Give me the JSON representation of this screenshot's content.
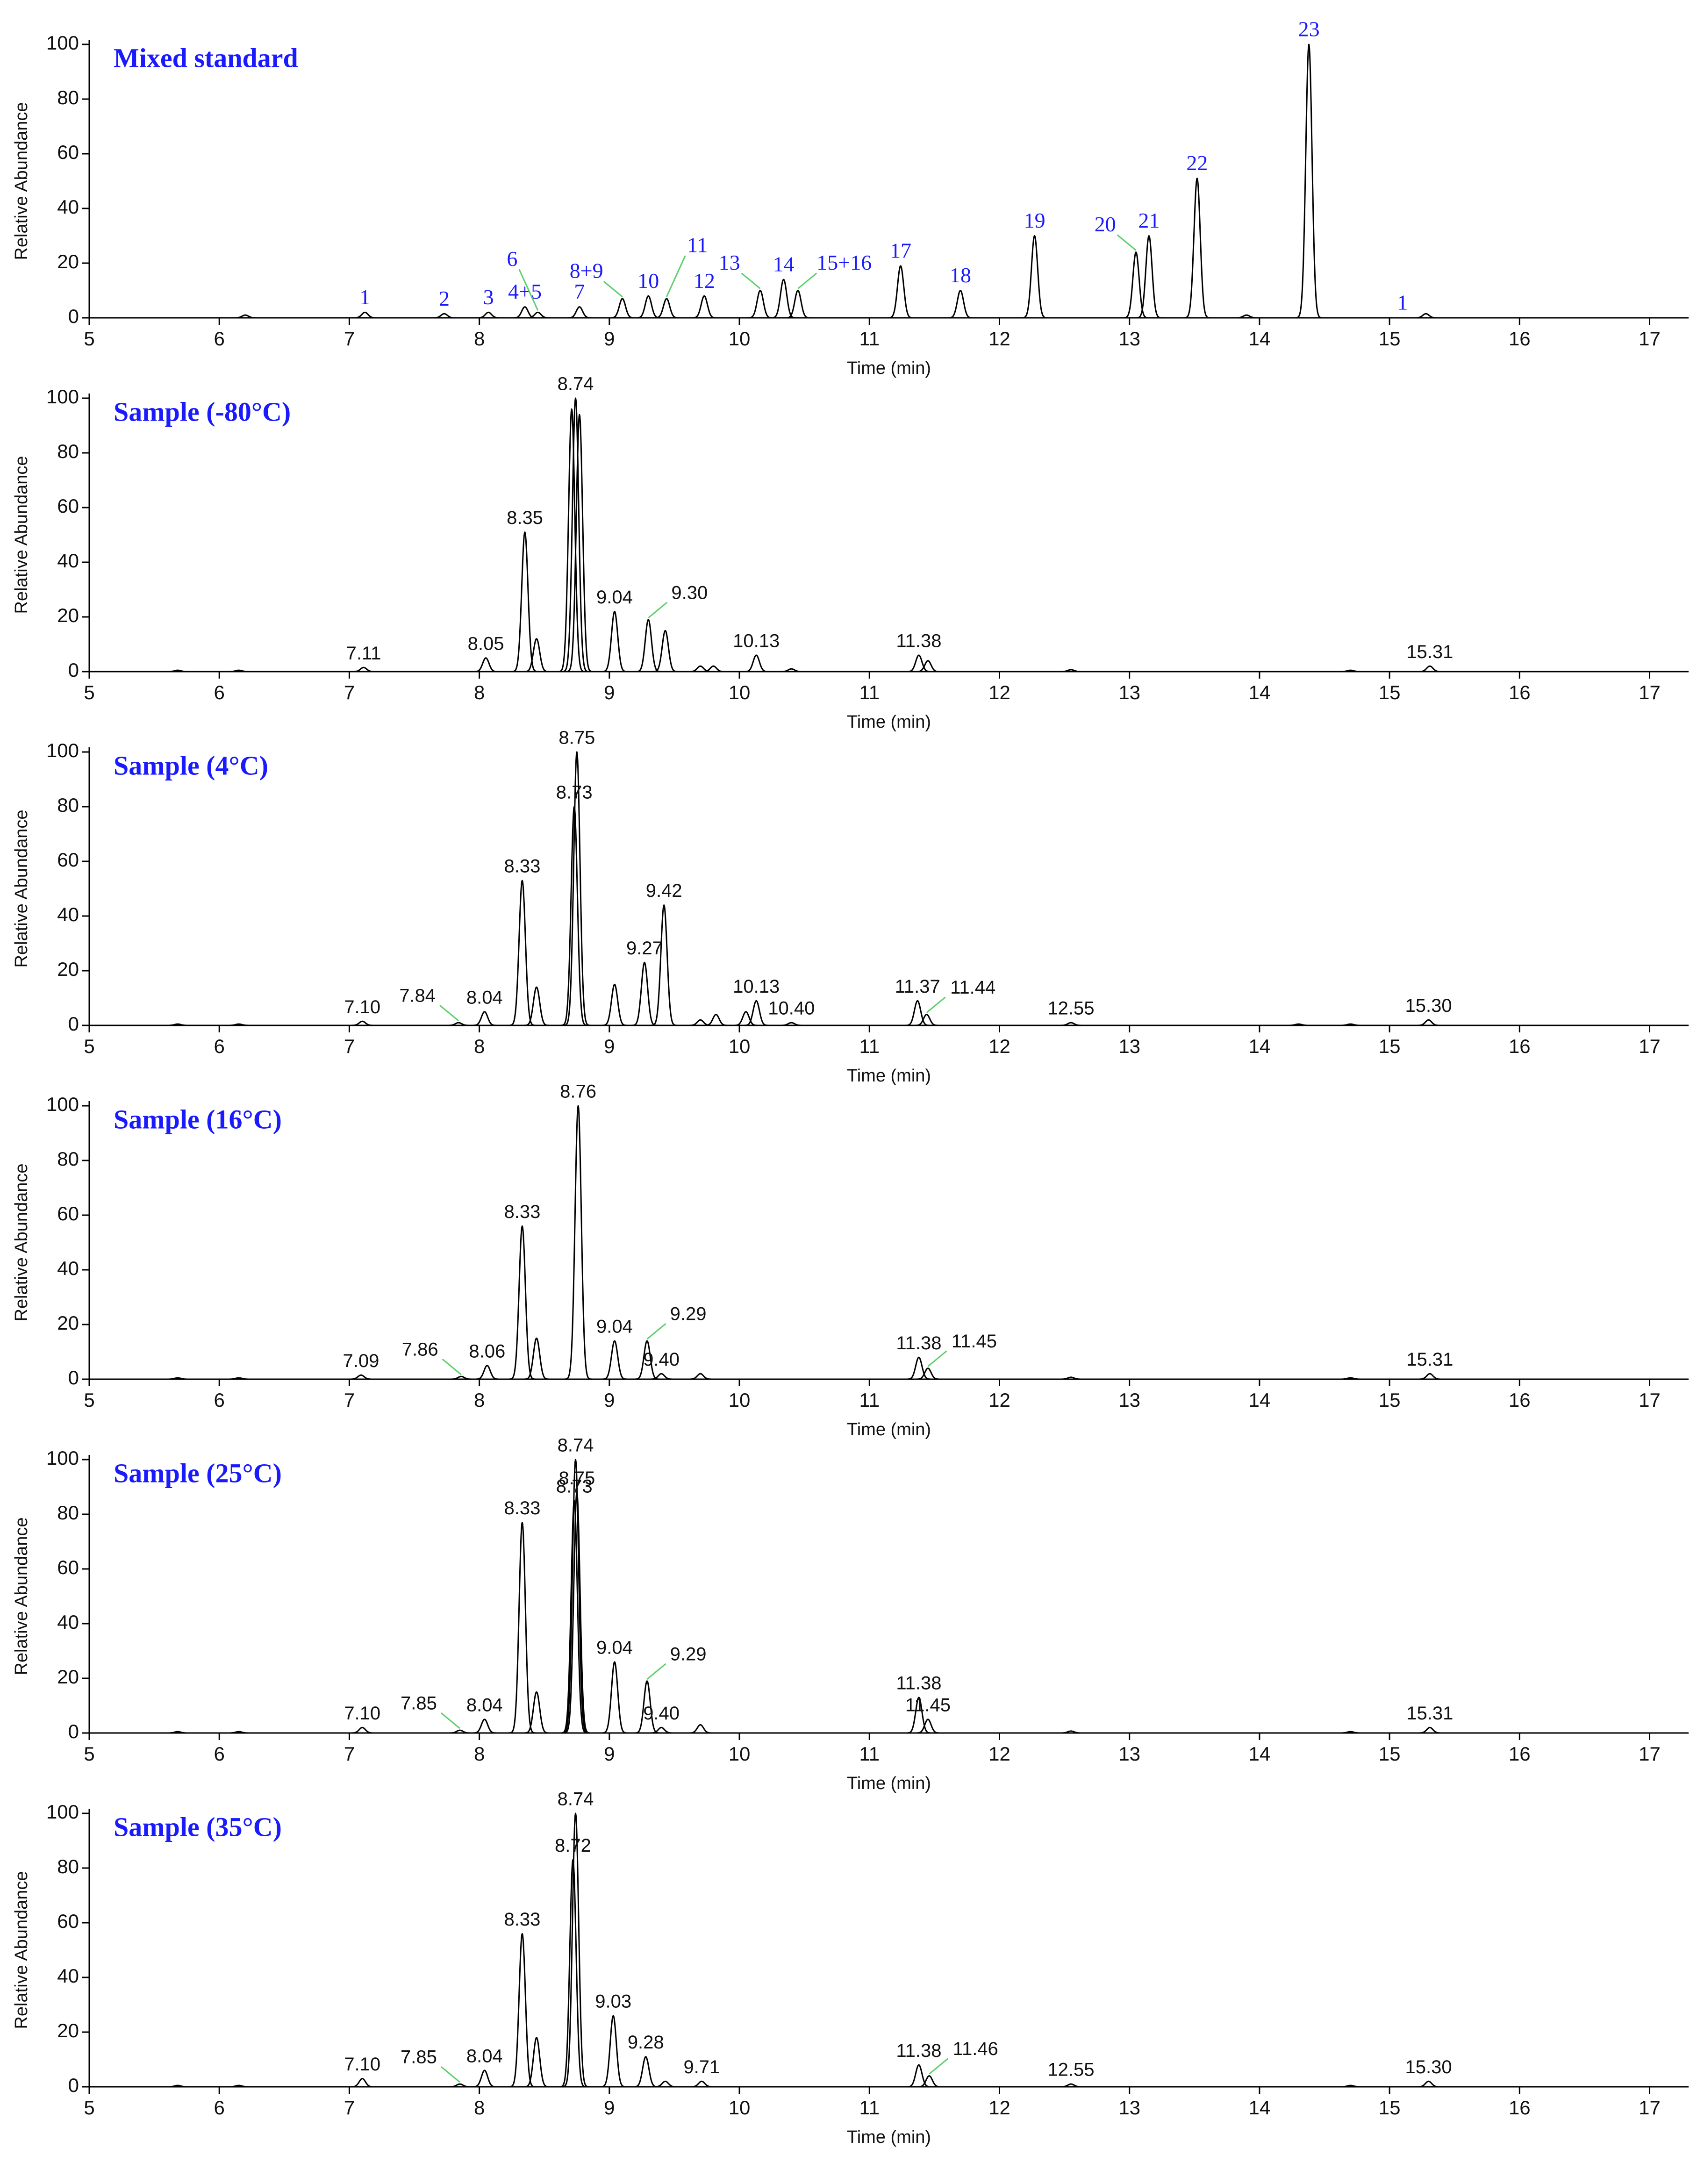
{
  "chart_data": [
    {
      "type": "line",
      "title": "Mixed standard",
      "x_label": "Time (min)",
      "y_label": "Relative Abundance",
      "xlim": [
        5,
        17.3
      ],
      "xticks": [
        5,
        6,
        7,
        8,
        9,
        10,
        11,
        12,
        13,
        14,
        15,
        16,
        17
      ],
      "ylim": [
        0,
        100
      ],
      "yticks": [
        0,
        20,
        40,
        60,
        80,
        100
      ],
      "x": [
        6.2,
        7.12,
        7.73,
        8.07,
        8.35,
        8.45,
        8.77,
        9.1,
        9.3,
        9.44,
        9.73,
        10.16,
        10.34,
        10.45,
        11.24,
        11.7,
        12.27,
        13.05,
        13.15,
        13.52,
        13.9,
        14.38,
        15.1,
        15.28
      ],
      "series": [
        {
          "color": "#000000",
          "values": [
            1,
            2,
            1.5,
            2,
            4,
            2,
            4,
            7,
            8,
            7,
            8,
            10,
            14,
            10,
            19,
            10,
            30,
            24,
            30,
            51,
            1,
            100,
            0,
            1.5
          ]
        }
      ],
      "peak_labels": [
        null,
        "1",
        "2",
        "3",
        "4+5",
        "6",
        "7",
        "8+9",
        "10",
        "11",
        "12",
        "13",
        "14",
        "15+16",
        "17",
        "18",
        "19",
        "20",
        "21",
        "22",
        null,
        "23",
        "1",
        null
      ]
    },
    {
      "type": "line",
      "title": "Sample (-80°C)",
      "x_label": "Time (min)",
      "y_label": "Relative Abundance",
      "xlim": [
        5,
        17.3
      ],
      "xticks": [
        5,
        6,
        7,
        8,
        9,
        10,
        11,
        12,
        13,
        14,
        15,
        16,
        17
      ],
      "ylim": [
        0,
        100
      ],
      "yticks": [
        0,
        20,
        40,
        60,
        80,
        100
      ],
      "x": [
        5.68,
        6.15,
        7.11,
        8.05,
        8.35,
        8.44,
        8.71,
        8.74,
        8.77,
        9.04,
        9.3,
        9.43,
        9.7,
        9.8,
        10.13,
        10.4,
        11.38,
        11.45,
        12.55,
        14.7,
        15.31
      ],
      "series": [
        {
          "color": "#000000",
          "values": [
            0.5,
            0.5,
            1.5,
            5,
            51,
            12,
            96,
            100,
            94,
            22,
            19,
            15,
            2,
            2,
            6,
            1,
            6,
            4,
            0.7,
            0.5,
            2
          ]
        }
      ],
      "peak_labels": [
        null,
        null,
        "7.11",
        "8.05",
        "8.35",
        null,
        null,
        "8.74",
        null,
        "9.04",
        "9.30",
        null,
        null,
        null,
        "10.13",
        null,
        "11.38",
        null,
        null,
        null,
        "15.31"
      ]
    },
    {
      "type": "line",
      "title": "Sample (4°C)",
      "x_label": "Time (min)",
      "y_label": "Relative Abundance",
      "xlim": [
        5,
        17.3
      ],
      "xticks": [
        5,
        6,
        7,
        8,
        9,
        10,
        11,
        12,
        13,
        14,
        15,
        16,
        17
      ],
      "ylim": [
        0,
        100
      ],
      "yticks": [
        0,
        20,
        40,
        60,
        80,
        100
      ],
      "x": [
        5.68,
        6.15,
        7.1,
        7.84,
        8.04,
        8.33,
        8.44,
        8.73,
        8.75,
        9.04,
        9.27,
        9.42,
        9.7,
        9.82,
        10.05,
        10.13,
        10.4,
        11.37,
        11.44,
        12.55,
        14.3,
        14.7,
        15.3
      ],
      "series": [
        {
          "color": "#000000",
          "values": [
            0.5,
            0.5,
            1.5,
            1,
            5,
            53,
            14,
            80,
            100,
            15,
            23,
            44,
            2,
            4,
            5,
            9,
            1,
            9,
            4,
            1,
            0.5,
            0.5,
            2
          ]
        }
      ],
      "peak_labels": [
        null,
        null,
        "7.10",
        "7.84",
        "8.04",
        "8.33",
        null,
        "8.73",
        "8.75",
        null,
        "9.27",
        "9.42",
        null,
        null,
        null,
        "10.13",
        "10.40",
        "11.37",
        "11.44",
        "12.55",
        null,
        null,
        "15.30"
      ]
    },
    {
      "type": "line",
      "title": "Sample (16°C)",
      "x_label": "Time (min)",
      "y_label": "Relative Abundance",
      "xlim": [
        5,
        17.3
      ],
      "xticks": [
        5,
        6,
        7,
        8,
        9,
        10,
        11,
        12,
        13,
        14,
        15,
        16,
        17
      ],
      "ylim": [
        0,
        100
      ],
      "yticks": [
        0,
        20,
        40,
        60,
        80,
        100
      ],
      "x": [
        5.68,
        6.15,
        7.09,
        7.86,
        8.06,
        8.33,
        8.44,
        8.76,
        9.04,
        9.29,
        9.4,
        9.7,
        11.38,
        11.45,
        12.55,
        14.7,
        15.31
      ],
      "series": [
        {
          "color": "#000000",
          "values": [
            0.5,
            0.5,
            1.5,
            1,
            5,
            56,
            15,
            100,
            14,
            14,
            2,
            2,
            8,
            4,
            0.7,
            0.5,
            2
          ]
        }
      ],
      "peak_labels": [
        null,
        null,
        "7.09",
        "7.86",
        "8.06",
        "8.33",
        null,
        "8.76",
        "9.04",
        "9.29",
        "9.40",
        null,
        "11.38",
        "11.45",
        null,
        null,
        "15.31"
      ]
    },
    {
      "type": "line",
      "title": "Sample (25°C)",
      "x_label": "Time (min)",
      "y_label": "Relative Abundance",
      "xlim": [
        5,
        17.3
      ],
      "xticks": [
        5,
        6,
        7,
        8,
        9,
        10,
        11,
        12,
        13,
        14,
        15,
        16,
        17
      ],
      "ylim": [
        0,
        100
      ],
      "yticks": [
        0,
        20,
        40,
        60,
        80,
        100
      ],
      "x": [
        5.68,
        6.15,
        7.1,
        7.85,
        8.04,
        8.33,
        8.44,
        8.73,
        8.74,
        8.75,
        9.04,
        9.29,
        9.4,
        9.7,
        11.38,
        11.45,
        12.55,
        14.7,
        15.31
      ],
      "series": [
        {
          "color": "#000000",
          "values": [
            0.5,
            0.5,
            2,
            1,
            5,
            77,
            15,
            85,
            100,
            88,
            26,
            19,
            2,
            3,
            13,
            5,
            0.7,
            0.5,
            2
          ]
        }
      ],
      "peak_labels": [
        null,
        null,
        "7.10",
        "7.85",
        "8.04",
        "8.33",
        null,
        "8.73",
        "8.74",
        "8.75",
        "9.04",
        "9.29",
        "9.40",
        null,
        "11.38",
        "11.45",
        null,
        null,
        "15.31"
      ]
    },
    {
      "type": "line",
      "title": "Sample (35°C)",
      "x_label": "Time (min)",
      "y_label": "Relative Abundance",
      "xlim": [
        5,
        17.3
      ],
      "xticks": [
        5,
        6,
        7,
        8,
        9,
        10,
        11,
        12,
        13,
        14,
        15,
        16,
        17
      ],
      "ylim": [
        0,
        100
      ],
      "yticks": [
        0,
        20,
        40,
        60,
        80,
        100
      ],
      "x": [
        5.68,
        6.15,
        7.1,
        7.85,
        8.04,
        8.33,
        8.44,
        8.72,
        8.74,
        9.03,
        9.28,
        9.43,
        9.71,
        11.38,
        11.46,
        12.55,
        14.7,
        15.3
      ],
      "series": [
        {
          "color": "#000000",
          "values": [
            0.5,
            0.5,
            3,
            1,
            6,
            56,
            18,
            83,
            100,
            26,
            11,
            2,
            2,
            8,
            4,
            1,
            0.5,
            2
          ]
        }
      ],
      "peak_labels": [
        null,
        null,
        "7.10",
        "7.85",
        "8.04",
        "8.33",
        null,
        "8.72",
        "8.74",
        "9.03",
        "9.28",
        null,
        "9.71",
        "11.38",
        "11.46",
        "12.55",
        null,
        "15.30"
      ]
    }
  ]
}
